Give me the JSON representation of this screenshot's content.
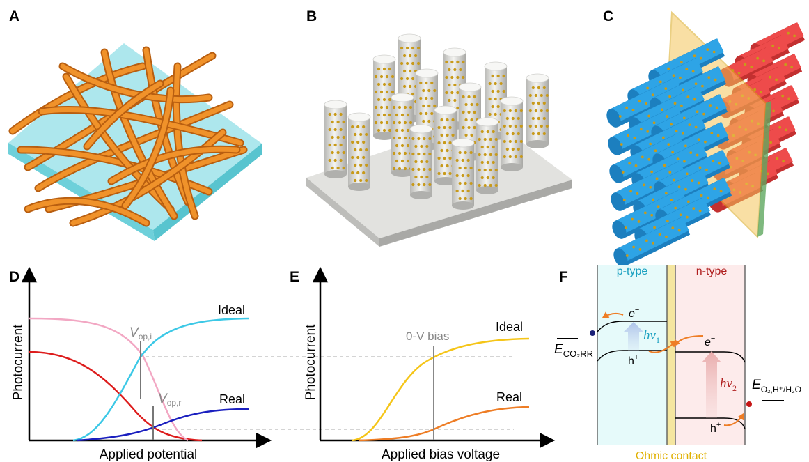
{
  "panels": {
    "a": "A",
    "b": "B",
    "c": "C",
    "d": "D",
    "e": "E",
    "f": "F"
  },
  "panel_d": {
    "xlabel": "Applied potential",
    "ylabel": "Photocurrent",
    "ideal": "Ideal",
    "real": "Real",
    "vop_i_main": "V",
    "vop_i_sub": "op,i",
    "vop_r_main": "V",
    "vop_r_sub": "op,r"
  },
  "panel_e": {
    "xlabel": "Applied bias voltage",
    "ylabel": "Photocurrent",
    "ideal": "Ideal",
    "real": "Real",
    "bias": "0-V bias"
  },
  "panel_f": {
    "p_type": "p-type",
    "n_type": "n-type",
    "ohmic": "Ohmic contact",
    "electron": "e",
    "electron_sup": "−",
    "hole": "h",
    "hole_sup": "+",
    "hv1_main": "hν",
    "hv1_sub": "1",
    "hv2_main": "hν",
    "hv2_sub": "2",
    "eco2_main": "E",
    "eco2_sub": "CO₂RR",
    "eo2_main": "E",
    "eo2_sub": "O₂,H⁺/H₂O"
  },
  "colors": {
    "cyan": "#3cc8e6",
    "pink": "#f2a7c3",
    "red": "#dd1c1c",
    "blue": "#1a1fbf",
    "yellow": "#f5c518",
    "orange": "#ee7d25",
    "p_text": "#1aa0c0",
    "n_text": "#b01e1e",
    "ohmic_text": "#e0b000",
    "rod_orange": "#e8841c",
    "rod_blue": "#2ea4e6",
    "rod_red": "#ee4b4b"
  }
}
